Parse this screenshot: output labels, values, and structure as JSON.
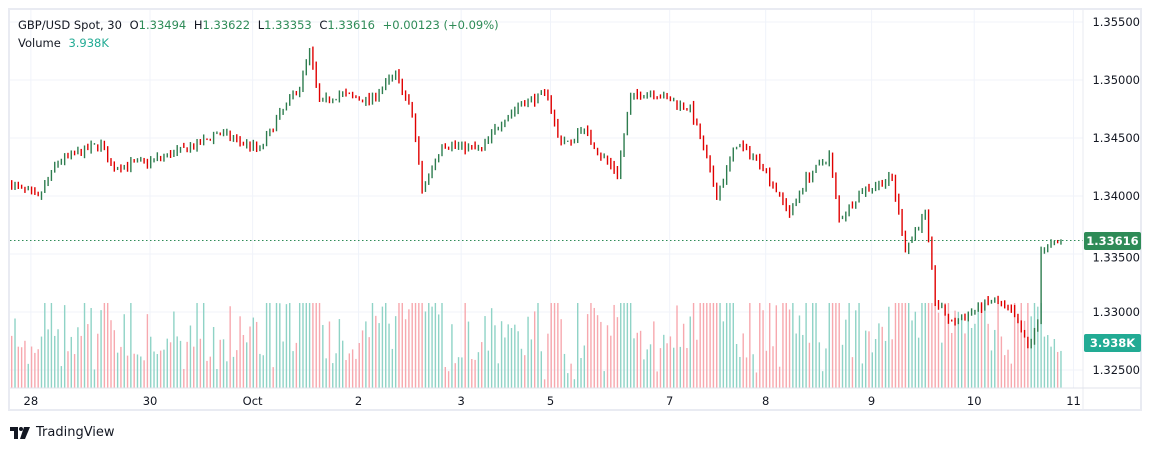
{
  "legend": {
    "symbol": "GBP/USD Spot, 30",
    "o_label": "O",
    "open": "1.33494",
    "h_label": "H",
    "high": "1.33622",
    "l_label": "L",
    "low": "1.33353",
    "c_label": "C",
    "close": "1.33616",
    "change": "+0.00123 (+0.09%)",
    "volume_label": "Volume",
    "volume": "3.938K"
  },
  "last_price_tag": "1.33616",
  "volume_tag": "3.938K",
  "brand": "TradingView",
  "colors": {
    "up": "#2e7d4f",
    "down": "#e00000",
    "vol_up": "#8fd3c6",
    "vol_down": "#f7a8ae",
    "grid": "#f0f3fa",
    "price_tag": "#2e8b57",
    "volume_tag": "#22ab94"
  },
  "chart_data": {
    "type": "ohlc",
    "title": "GBP/USD Spot, 30",
    "ylim": [
      1.3245,
      1.3565
    ],
    "yticks": [
      "1.35500",
      "1.35000",
      "1.34500",
      "1.34000",
      "1.33500",
      "1.33000",
      "1.32500"
    ],
    "ytick_values": [
      1.355,
      1.35,
      1.345,
      1.34,
      1.335,
      1.33,
      1.325
    ],
    "xticks": [
      {
        "label": "28",
        "bar": 6
      },
      {
        "label": "30",
        "bar": 42
      },
      {
        "label": "Oct",
        "bar": 73
      },
      {
        "label": "2",
        "bar": 105
      },
      {
        "label": "3",
        "bar": 136
      },
      {
        "label": "5",
        "bar": 163
      },
      {
        "label": "7",
        "bar": 199
      },
      {
        "label": "8",
        "bar": 228
      },
      {
        "label": "9",
        "bar": 260
      },
      {
        "label": "10",
        "bar": 291
      },
      {
        "label": "11",
        "bar": 321
      }
    ],
    "bar_count": 318,
    "close_keypoints": [
      [
        0,
        1.341
      ],
      [
        8,
        1.3398
      ],
      [
        14,
        1.343
      ],
      [
        27,
        1.3445
      ],
      [
        30,
        1.3425
      ],
      [
        42,
        1.343
      ],
      [
        57,
        1.3445
      ],
      [
        62,
        1.3455
      ],
      [
        75,
        1.344
      ],
      [
        81,
        1.347
      ],
      [
        87,
        1.3495
      ],
      [
        90,
        1.3525
      ],
      [
        93,
        1.348
      ],
      [
        99,
        1.3488
      ],
      [
        108,
        1.3482
      ],
      [
        116,
        1.3505
      ],
      [
        121,
        1.347
      ],
      [
        124,
        1.3405
      ],
      [
        130,
        1.3445
      ],
      [
        142,
        1.344
      ],
      [
        148,
        1.3465
      ],
      [
        154,
        1.348
      ],
      [
        162,
        1.3488
      ],
      [
        165,
        1.345
      ],
      [
        169,
        1.3445
      ],
      [
        172,
        1.346
      ],
      [
        178,
        1.3435
      ],
      [
        183,
        1.342
      ],
      [
        187,
        1.3485
      ],
      [
        193,
        1.349
      ],
      [
        205,
        1.3475
      ],
      [
        208,
        1.345
      ],
      [
        213,
        1.34
      ],
      [
        219,
        1.3445
      ],
      [
        226,
        1.343
      ],
      [
        235,
        1.3385
      ],
      [
        240,
        1.3415
      ],
      [
        247,
        1.3435
      ],
      [
        250,
        1.338
      ],
      [
        257,
        1.3405
      ],
      [
        266,
        1.3415
      ],
      [
        270,
        1.3355
      ],
      [
        276,
        1.3385
      ],
      [
        279,
        1.331
      ],
      [
        284,
        1.329
      ],
      [
        296,
        1.331
      ],
      [
        302,
        1.33
      ],
      [
        307,
        1.327
      ],
      [
        310,
        1.329
      ],
      [
        311,
        1.3355
      ],
      [
        317,
        1.336
      ]
    ],
    "volume_max": "8K"
  }
}
